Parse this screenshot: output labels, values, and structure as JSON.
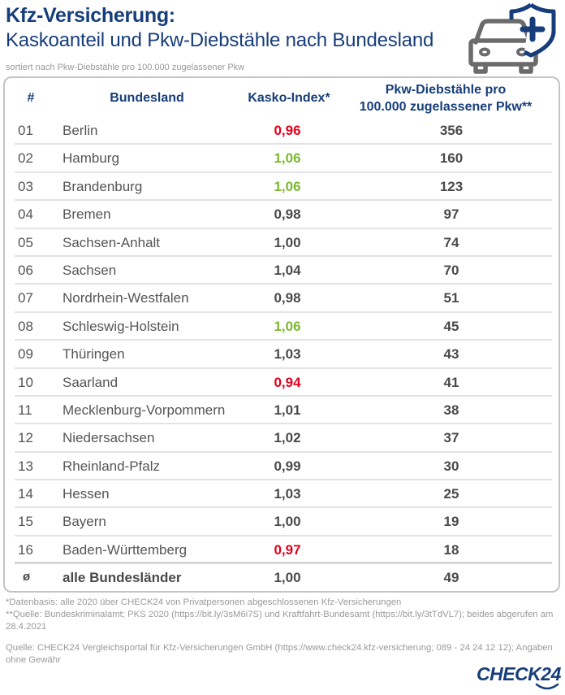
{
  "header": {
    "title": "Kfz-Versicherung:",
    "subtitle": "Kaskoanteil und Pkw-Diebstähle nach Bundesland",
    "sort_note": "sortiert nach Pkw-Diebstähle pro 100.000 zugelassener Pkw",
    "icon": "car-with-shield-plus-icon"
  },
  "colors": {
    "brand_blue": "#173e7b",
    "below_average": "#e2001a",
    "above_average": "#7cb82f",
    "neutral": "#4a4a4a"
  },
  "chart_data": {
    "type": "table",
    "title": "Kfz-Versicherung: Kaskoanteil und Pkw-Diebstähle nach Bundesland",
    "columns": [
      "#",
      "Bundesland",
      "Kasko-Index*",
      "Pkw-Diebstähle pro 100.000 zugelassener Pkw**"
    ],
    "column_header_lines": {
      "theft_line1": "Pkw-Diebstähle pro",
      "theft_line2": "100.000 zugelassener Pkw**"
    },
    "rows": [
      {
        "rank": "01",
        "state": "Berlin",
        "kasko_index": "0,96",
        "highlight": "red",
        "thefts": "356"
      },
      {
        "rank": "02",
        "state": "Hamburg",
        "kasko_index": "1,06",
        "highlight": "green",
        "thefts": "160"
      },
      {
        "rank": "03",
        "state": "Brandenburg",
        "kasko_index": "1,06",
        "highlight": "green",
        "thefts": "123"
      },
      {
        "rank": "04",
        "state": "Bremen",
        "kasko_index": "0,98",
        "highlight": "none",
        "thefts": "97"
      },
      {
        "rank": "05",
        "state": "Sachsen-Anhalt",
        "kasko_index": "1,00",
        "highlight": "none",
        "thefts": "74"
      },
      {
        "rank": "06",
        "state": "Sachsen",
        "kasko_index": "1,04",
        "highlight": "none",
        "thefts": "70"
      },
      {
        "rank": "07",
        "state": "Nordrhein-Westfalen",
        "kasko_index": "0,98",
        "highlight": "none",
        "thefts": "51"
      },
      {
        "rank": "08",
        "state": "Schleswig-Holstein",
        "kasko_index": "1,06",
        "highlight": "green",
        "thefts": "45"
      },
      {
        "rank": "09",
        "state": "Thüringen",
        "kasko_index": "1,03",
        "highlight": "none",
        "thefts": "43"
      },
      {
        "rank": "10",
        "state": "Saarland",
        "kasko_index": "0,94",
        "highlight": "red",
        "thefts": "41"
      },
      {
        "rank": "11",
        "state": "Mecklenburg-Vorpommern",
        "kasko_index": "1,01",
        "highlight": "none",
        "thefts": "38"
      },
      {
        "rank": "12",
        "state": "Niedersachsen",
        "kasko_index": "1,02",
        "highlight": "none",
        "thefts": "37"
      },
      {
        "rank": "13",
        "state": "Rheinland-Pfalz",
        "kasko_index": "0,99",
        "highlight": "none",
        "thefts": "30"
      },
      {
        "rank": "14",
        "state": "Hessen",
        "kasko_index": "1,03",
        "highlight": "none",
        "thefts": "25"
      },
      {
        "rank": "15",
        "state": "Bayern",
        "kasko_index": "1,00",
        "highlight": "none",
        "thefts": "19"
      },
      {
        "rank": "16",
        "state": "Baden-Württemberg",
        "kasko_index": "0,97",
        "highlight": "red",
        "thefts": "18"
      }
    ],
    "total": {
      "rank": "ø",
      "state": "alle Bundesländer",
      "kasko_index": "1,00",
      "thefts": "49"
    }
  },
  "footnotes": {
    "note1": "*Datenbasis: alle 2020 über CHECK24 von Privatpersonen abgeschlossenen Kfz-Versicherungen",
    "note2": "**Quelle: Bundeskriminalamt; PKS 2020 (https://bit.ly/3sM6i7S) und Kraftfahrt-Bundesamt (https://bit.ly/3tTdVL7); beides abgerufen am 28.4.2021",
    "source": "Quelle: CHECK24 Vergleichsportal für Kfz-Versicherungen GmbH (https://www.check24.kfz-versicherung; 089 - 24 24 12 12); Angaben ohne Gewähr"
  },
  "logo": {
    "text": "CHECK24"
  }
}
